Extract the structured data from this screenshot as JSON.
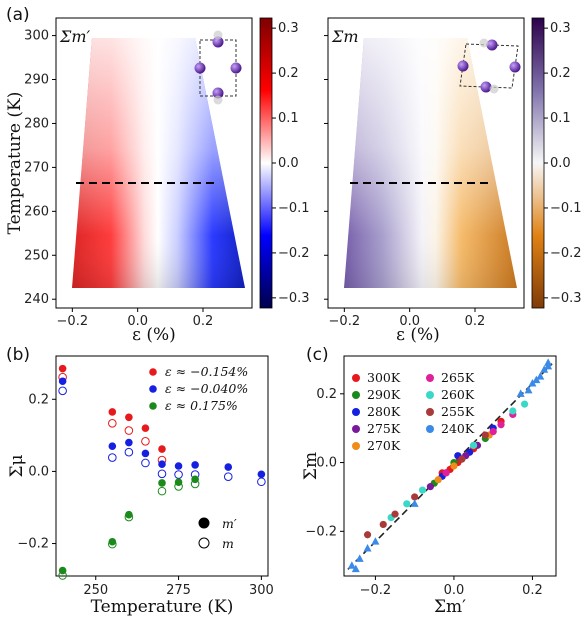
{
  "labels": {
    "panel_a": "(a)",
    "panel_b": "(b)",
    "panel_c": "(c)",
    "map1_title": "Σm′",
    "map2_title": "Σm",
    "temp_axis": "Temperature (K)",
    "eps_axis": "ε (%)",
    "b_ylabel": "Σμ",
    "b_xlabel": "Temperature (K)",
    "c_ylabel": "Σm",
    "c_xlabel": "Σm′"
  },
  "chart_data": [
    {
      "type": "heatmap",
      "id": "map_m_prime",
      "title": "Σm′",
      "xlabel": "ε (%)",
      "ylabel": "Temperature (K)",
      "xlim": [
        -0.25,
        0.35
      ],
      "ylim": [
        238,
        304
      ],
      "xticks": [
        "−0.2",
        "0.0",
        "0.2"
      ],
      "yticks": [
        "240",
        "250",
        "260",
        "270",
        "280",
        "290",
        "300"
      ],
      "colorbar": {
        "range": [
          -0.3,
          0.3
        ],
        "ticks": [
          "0.3",
          "0.2",
          "0.1",
          "0.0",
          "−0.1",
          "−0.2",
          "−0.3"
        ],
        "colormap": "seismic"
      },
      "dashed_line_temperature": 265.5
    },
    {
      "type": "heatmap",
      "id": "map_m",
      "title": "Σm",
      "xlabel": "ε (%)",
      "xlim": [
        -0.25,
        0.35
      ],
      "ylim": [
        238,
        304
      ],
      "xticks": [
        "−0.2",
        "0.0",
        "0.2"
      ],
      "colorbar": {
        "range": [
          -0.3,
          0.3
        ],
        "ticks": [
          "0.3",
          "0.2",
          "0.1",
          "0.0",
          "−0.1",
          "−0.2",
          "−0.3"
        ],
        "colormap": "PuOr"
      },
      "dashed_line_temperature": 265.5
    },
    {
      "type": "scatter",
      "id": "panel_b",
      "xlabel": "Temperature (K)",
      "ylabel": "Σμ",
      "xlim": [
        238,
        302
      ],
      "ylim": [
        -0.29,
        0.32
      ],
      "xticks": [
        "250",
        "275",
        "300"
      ],
      "yticks": [
        "0.2",
        "0.0",
        "−0.2"
      ],
      "series": [
        {
          "name": "ε ≈ −0.154%",
          "color": "#e8191c",
          "x": [
            240,
            255,
            260,
            265,
            270
          ],
          "m_prime": [
            0.285,
            0.165,
            0.15,
            0.12,
            0.062
          ],
          "m": [
            0.278,
            0.15,
            0.13,
            0.1,
            0.048
          ]
        },
        {
          "name": "ε ≈ −0.040%",
          "color": "#1520e0",
          "x": [
            240,
            255,
            260,
            265,
            270,
            275,
            280,
            290,
            300
          ],
          "m_prime": [
            0.25,
            0.07,
            0.08,
            0.05,
            0.02,
            0.015,
            0.018,
            0.012,
            -0.008
          ],
          "m": [
            0.24,
            0.055,
            0.07,
            0.04,
            0.01,
            0.008,
            0.008,
            0.002,
            -0.012
          ]
        },
        {
          "name": "ε ≈ 0.175%",
          "color": "#1a8a1a",
          "x": [
            240,
            255,
            260,
            270,
            275,
            280
          ],
          "m_prime": [
            -0.275,
            -0.195,
            -0.12,
            -0.032,
            -0.03,
            -0.022
          ],
          "m": [
            -0.272,
            -0.185,
            -0.11,
            -0.038,
            -0.025,
            -0.018
          ]
        }
      ],
      "marker_legend": [
        {
          "label": "m′",
          "fill": "filled"
        },
        {
          "label": "m",
          "fill": "open"
        }
      ]
    },
    {
      "type": "scatter",
      "id": "panel_c",
      "xlabel": "Σm′",
      "ylabel": "Σm",
      "xlim": [
        -0.28,
        0.26
      ],
      "ylim": [
        -0.33,
        0.31
      ],
      "xticks": [
        "−0.2",
        "0.0",
        "0.2"
      ],
      "yticks": [
        "0.2",
        "0.0",
        "−0.2"
      ],
      "series": [
        {
          "name": "300K",
          "color": "#e8191c",
          "points": [
            [
              -0.03,
              -0.03
            ],
            [
              0.01,
              0.0
            ],
            [
              0.05,
              0.04
            ],
            [
              0.12,
              0.12
            ],
            [
              -0.01,
              -0.02
            ]
          ]
        },
        {
          "name": "290K",
          "color": "#1a8a1a",
          "points": [
            [
              0.02,
              0.01
            ],
            [
              -0.05,
              -0.06
            ],
            [
              0.08,
              0.07
            ],
            [
              0.0,
              0.0
            ]
          ]
        },
        {
          "name": "280K",
          "color": "#1520e0",
          "points": [
            [
              0.04,
              0.03
            ],
            [
              -0.03,
              -0.04
            ],
            [
              0.1,
              0.1
            ],
            [
              0.01,
              0.02
            ]
          ]
        },
        {
          "name": "275K",
          "color": "#7a1a9a",
          "points": [
            [
              0.03,
              0.02
            ],
            [
              -0.02,
              -0.03
            ],
            [
              0.06,
              0.05
            ],
            [
              -0.06,
              -0.07
            ]
          ]
        },
        {
          "name": "270K",
          "color": "#f08c1a",
          "points": [
            [
              0.05,
              0.05
            ],
            [
              -0.04,
              -0.05
            ],
            [
              0.09,
              0.08
            ],
            [
              0.0,
              -0.01
            ]
          ]
        },
        {
          "name": "265K",
          "color": "#e0209a",
          "points": [
            [
              0.12,
              0.11
            ],
            [
              0.1,
              0.09
            ],
            [
              -0.02,
              -0.03
            ],
            [
              0.15,
              0.14
            ]
          ]
        },
        {
          "name": "260K",
          "color": "#3ad8c8",
          "points": [
            [
              -0.12,
              -0.12
            ],
            [
              -0.08,
              -0.08
            ],
            [
              0.15,
              0.15
            ],
            [
              0.05,
              0.05
            ],
            [
              -0.16,
              -0.16
            ],
            [
              0.18,
              0.17
            ]
          ]
        },
        {
          "name": "255K",
          "color": "#a83a3a",
          "points": [
            [
              -0.22,
              -0.21
            ],
            [
              -0.15,
              -0.15
            ],
            [
              -0.18,
              -0.18
            ],
            [
              0.02,
              0.01
            ],
            [
              0.08,
              0.08
            ],
            [
              -0.1,
              -0.1
            ]
          ]
        },
        {
          "name": "240K",
          "color": "#3a8ae8",
          "points": [
            [
              -0.26,
              -0.3
            ],
            [
              -0.24,
              -0.28
            ],
            [
              -0.22,
              -0.25
            ],
            [
              0.24,
              0.28
            ],
            [
              0.23,
              0.27
            ],
            [
              0.22,
              0.25
            ],
            [
              0.2,
              0.23
            ],
            [
              -0.2,
              -0.23
            ],
            [
              0.24,
              0.29
            ],
            [
              0.21,
              0.24
            ],
            [
              -0.25,
              -0.31
            ],
            [
              0.19,
              0.21
            ],
            [
              -0.1,
              -0.12
            ],
            [
              0.17,
              0.2
            ]
          ]
        }
      ],
      "fit_line": {
        "slope": 1.15,
        "intercept": 0.0
      }
    }
  ]
}
